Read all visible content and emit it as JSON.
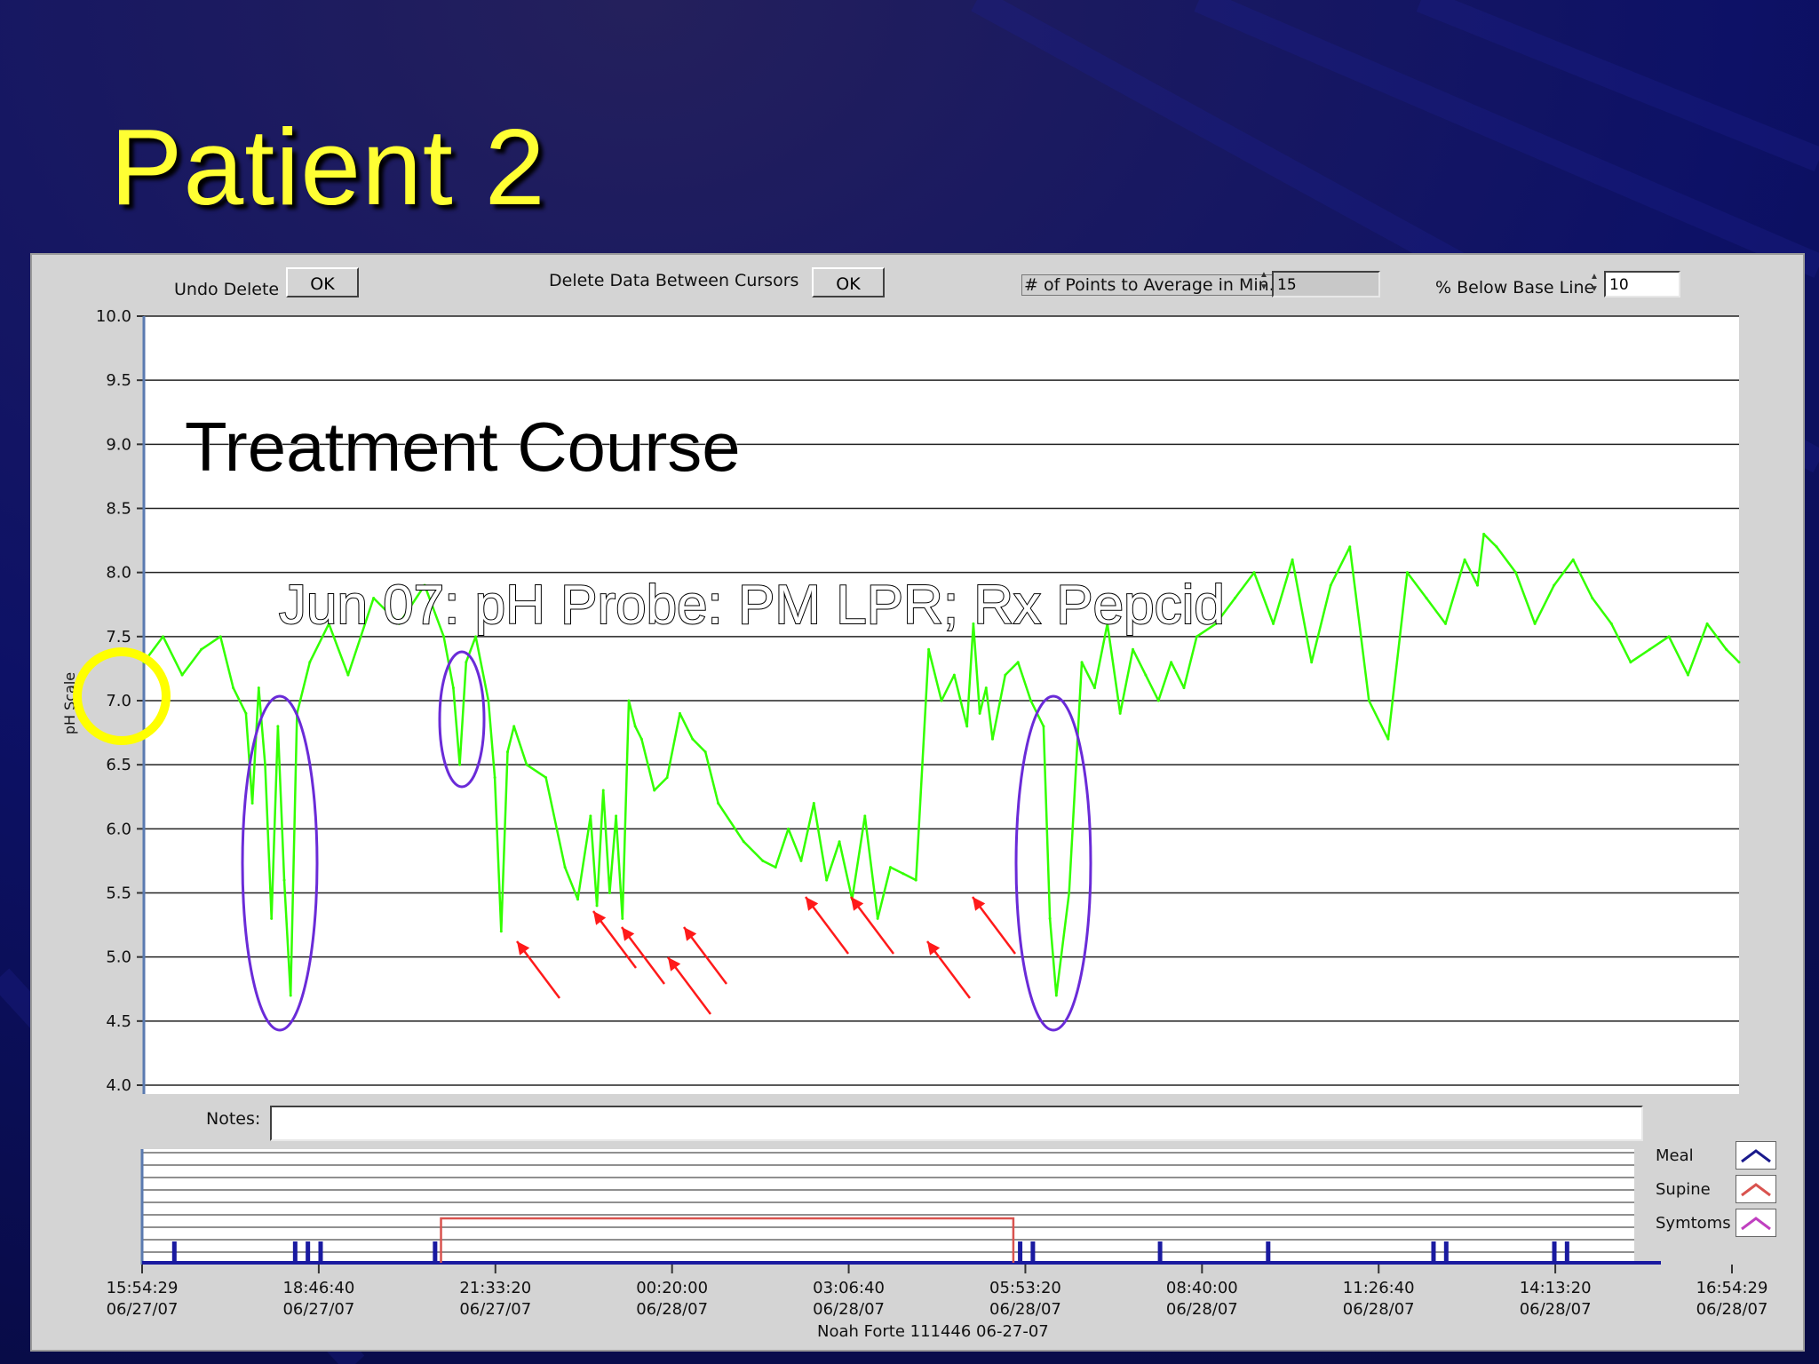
{
  "slide": {
    "title": "Patient 2"
  },
  "toolbar": {
    "undo_delete_label": "Undo Delete",
    "undo_ok": "OK",
    "delete_between_label": "Delete  Data Between Cursors",
    "delete_ok": "OK",
    "points_to_average_label": "# of Points to Average in Min.",
    "points_to_average_value": "15",
    "below_baseline_label": "% Below Base Line",
    "below_baseline_value": "10"
  },
  "overlay": {
    "heading": "Treatment Course",
    "subheading": "Jun 07: pH Probe: PM LPR; Rx Pepcid"
  },
  "notes": {
    "label": "Notes:",
    "value": ""
  },
  "event_legend": {
    "items": [
      {
        "label": "Meal",
        "color": "#1a1a8c"
      },
      {
        "label": "Supine",
        "color": "#d9534f"
      },
      {
        "label": "Symtoms",
        "color": "#c040c0"
      }
    ]
  },
  "footer": {
    "patient": "Noah  Forte  111446  06-27-07"
  },
  "chart_data": {
    "type": "line",
    "ylabel": "pH Scale",
    "ylim": [
      4.0,
      10.0
    ],
    "yticks": [
      "4.0",
      "4.5",
      "5.0",
      "5.5",
      "6.0",
      "6.5",
      "7.0",
      "7.5",
      "8.0",
      "8.5",
      "9.0",
      "9.5",
      "10.0"
    ],
    "xticks": [
      {
        "time": "15:54:29",
        "date": "06/27/07"
      },
      {
        "time": "18:46:40",
        "date": "06/27/07"
      },
      {
        "time": "21:33:20",
        "date": "06/27/07"
      },
      {
        "time": "00:20:00",
        "date": "06/28/07"
      },
      {
        "time": "03:06:40",
        "date": "06/28/07"
      },
      {
        "time": "05:53:20",
        "date": "06/28/07"
      },
      {
        "time": "08:40:00",
        "date": "06/28/07"
      },
      {
        "time": "11:26:40",
        "date": "06/28/07"
      },
      {
        "time": "14:13:20",
        "date": "06/28/07"
      },
      {
        "time": "16:54:29",
        "date": "06/28/07"
      }
    ],
    "x_range_hours": [
      0,
      25
    ],
    "grid": true,
    "series": [
      {
        "color": "#33ff00",
        "x": [
          0.0,
          0.3,
          0.6,
          0.9,
          1.2,
          1.4,
          1.6,
          1.7,
          1.8,
          1.9,
          2.0,
          2.1,
          2.2,
          2.3,
          2.4,
          2.6,
          2.9,
          3.2,
          3.6,
          4.0,
          4.4,
          4.7,
          4.85,
          4.95,
          5.05,
          5.2,
          5.4,
          5.5,
          5.6,
          5.7,
          5.8,
          6.0,
          6.3,
          6.6,
          6.8,
          7.0,
          7.1,
          7.2,
          7.3,
          7.4,
          7.5,
          7.6,
          7.7,
          7.8,
          8.0,
          8.2,
          8.4,
          8.6,
          8.8,
          9.0,
          9.4,
          9.7,
          9.9,
          10.1,
          10.3,
          10.5,
          10.7,
          10.9,
          11.1,
          11.3,
          11.5,
          11.7,
          11.9,
          12.1,
          12.3,
          12.5,
          12.7,
          12.9,
          13.0,
          13.1,
          13.2,
          13.3,
          13.5,
          13.7,
          13.9,
          14.1,
          14.2,
          14.3,
          14.5,
          14.7,
          14.9,
          15.1,
          15.3,
          15.5,
          15.7,
          15.9,
          16.1,
          16.3,
          16.5,
          16.8,
          17.1,
          17.4,
          17.7,
          18.0,
          18.3,
          18.6,
          18.9,
          19.2,
          19.5,
          19.8,
          20.1,
          20.4,
          20.7,
          20.9,
          21.0,
          21.2,
          21.5,
          21.8,
          22.1,
          22.4,
          22.7,
          23.0,
          23.3,
          23.6,
          23.9,
          24.2,
          24.5,
          24.8,
          25.0
        ],
        "y": [
          7.3,
          7.5,
          7.2,
          7.4,
          7.5,
          7.1,
          6.9,
          6.2,
          7.1,
          6.5,
          5.3,
          6.8,
          5.6,
          4.7,
          6.9,
          7.3,
          7.6,
          7.2,
          7.8,
          7.6,
          7.9,
          7.5,
          7.1,
          6.5,
          7.3,
          7.5,
          7.0,
          6.4,
          5.2,
          6.6,
          6.8,
          6.5,
          6.4,
          5.7,
          5.45,
          6.1,
          5.4,
          6.3,
          5.5,
          6.1,
          5.3,
          7.0,
          6.8,
          6.7,
          6.3,
          6.4,
          6.9,
          6.7,
          6.6,
          6.2,
          5.9,
          5.75,
          5.7,
          6.0,
          5.75,
          6.2,
          5.6,
          5.9,
          5.45,
          6.1,
          5.3,
          5.7,
          5.65,
          5.6,
          7.4,
          7.0,
          7.2,
          6.8,
          7.6,
          6.9,
          7.1,
          6.7,
          7.2,
          7.3,
          7.0,
          6.8,
          5.3,
          4.7,
          5.5,
          7.3,
          7.1,
          7.6,
          6.9,
          7.4,
          7.2,
          7.0,
          7.3,
          7.1,
          7.5,
          7.6,
          7.8,
          8.0,
          7.6,
          8.1,
          7.3,
          7.9,
          8.2,
          7.0,
          6.7,
          8.0,
          7.8,
          7.6,
          8.1,
          7.9,
          8.3,
          8.2,
          8.0,
          7.6,
          7.9,
          8.1,
          7.8,
          7.6,
          7.3,
          7.4,
          7.5,
          7.2,
          7.6,
          7.4,
          7.3
        ]
      }
    ],
    "event_markers": {
      "meal_hours": [
        0.5,
        2.4,
        2.6,
        2.8,
        4.6,
        13.8,
        14.0,
        16.0,
        17.7,
        20.3,
        20.5,
        22.2,
        22.4
      ],
      "supine_hours": [
        4.7,
        13.7
      ]
    }
  }
}
